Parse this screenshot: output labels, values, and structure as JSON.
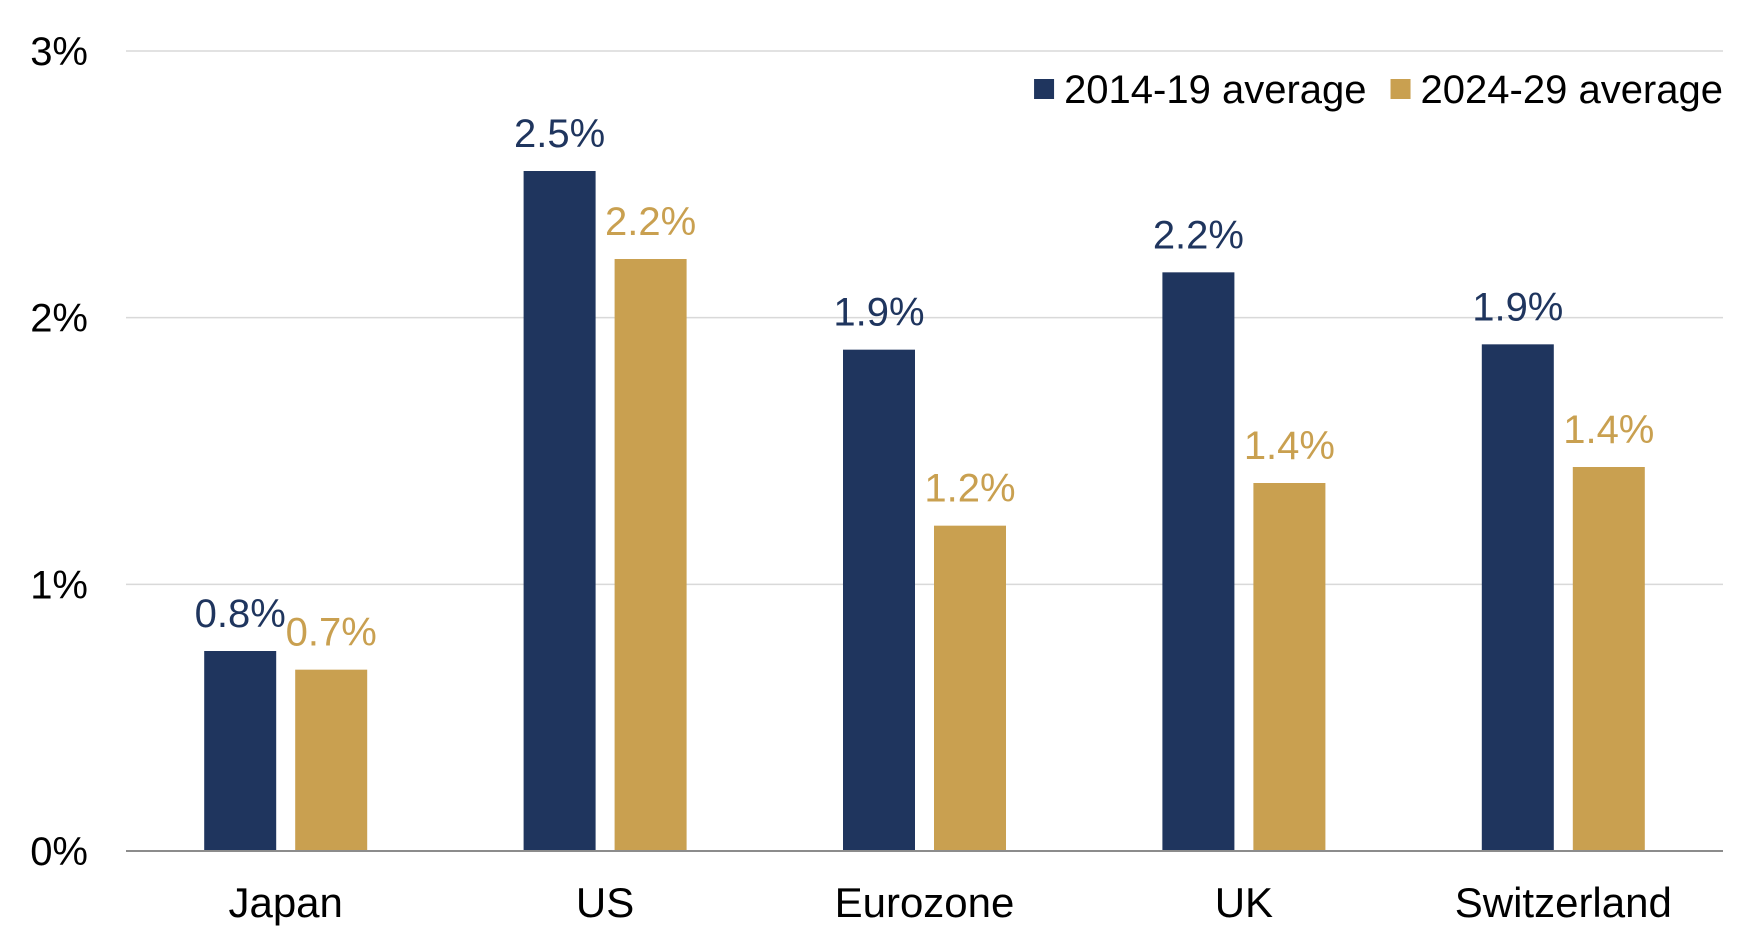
{
  "chart_data": {
    "type": "bar",
    "title": "",
    "xlabel": "",
    "ylabel": "",
    "ylim": [
      0,
      3
    ],
    "yticks": [
      {
        "value": 0,
        "label": "0%"
      },
      {
        "value": 1,
        "label": "1%"
      },
      {
        "value": 2,
        "label": "2%"
      },
      {
        "value": 3,
        "label": "3%"
      }
    ],
    "grid": true,
    "legend_position": "top-right",
    "categories": [
      "Japan",
      "US",
      "Eurozone",
      "UK",
      "Switzerland"
    ],
    "series": [
      {
        "name": "2014-19 average",
        "color": "#1f355e",
        "values": [
          0.75,
          2.55,
          1.88,
          2.17,
          1.9
        ],
        "labels": [
          "0.8%",
          "2.5%",
          "1.9%",
          "2.2%",
          "1.9%"
        ]
      },
      {
        "name": "2024-29 average",
        "color": "#c9a050",
        "values": [
          0.68,
          2.22,
          1.22,
          1.38,
          1.44
        ],
        "labels": [
          "0.7%",
          "2.2%",
          "1.2%",
          "1.4%",
          "1.4%"
        ]
      }
    ]
  }
}
